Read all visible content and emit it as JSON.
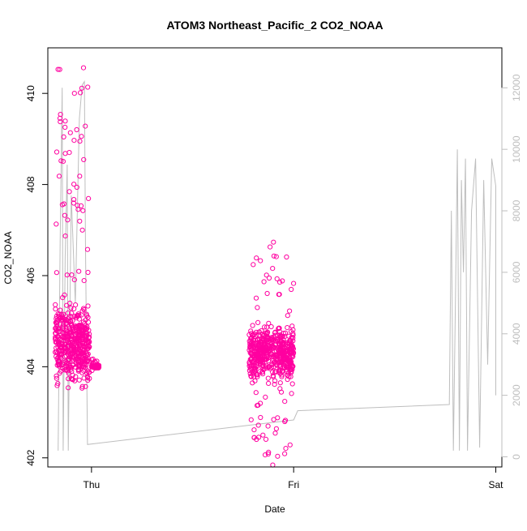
{
  "chart_data": {
    "type": "scatter",
    "title": "ATOM3 Northeast_Pacific_2 CO2_NOAA",
    "xlabel": "Date",
    "ylabel": "CO2_NOAA",
    "x_ticks": [
      {
        "label": "Thu",
        "day": 0.0
      },
      {
        "label": "Fri",
        "day": 1.0
      },
      {
        "label": "Sat",
        "day": 2.0
      }
    ],
    "x_range_days": [
      -0.216,
      2.03
    ],
    "y_left": {
      "ticks": [
        402,
        404,
        406,
        408,
        410
      ],
      "range": [
        401.8,
        411.0
      ]
    },
    "y_right": {
      "ticks": [
        0,
        2000,
        4000,
        6000,
        8000,
        10000,
        12000
      ],
      "range": [
        -330,
        13300
      ],
      "color": "#bebebe"
    },
    "marker_color": "#ff00a0",
    "line_color": "#bebebe",
    "grid": false,
    "series": [
      {
        "kind": "scatter_clusters",
        "axis": "left",
        "clusters": [
          {
            "x_start": -0.18,
            "x_end": -0.01,
            "y_min": 403.5,
            "y_max": 410.6,
            "y_center": 404.5,
            "n": 520
          },
          {
            "x_start": 0.0,
            "x_end": 0.04,
            "y_min": 403.9,
            "y_max": 404.2,
            "y_center": 404.0,
            "n": 80
          },
          {
            "x_start": 0.78,
            "x_end": 1.0,
            "y_min": 401.8,
            "y_max": 406.8,
            "y_center": 404.3,
            "n": 560
          }
        ]
      },
      {
        "kind": "line",
        "axis": "right",
        "points": [
          [
            -0.165,
            200
          ],
          [
            -0.155,
            7000
          ],
          [
            -0.145,
            12000
          ],
          [
            -0.14,
            200
          ],
          [
            -0.13,
            6500
          ],
          [
            -0.12,
            9500
          ],
          [
            -0.115,
            200
          ],
          [
            -0.1,
            8500
          ],
          [
            -0.08,
            5000
          ],
          [
            -0.06,
            11000
          ],
          [
            -0.05,
            11800
          ],
          [
            -0.045,
            12100
          ],
          [
            -0.035,
            12200
          ],
          [
            -0.03,
            7000
          ],
          [
            -0.02,
            400
          ],
          [
            1.0,
            1200
          ],
          [
            1.02,
            1500
          ],
          [
            1.77,
            1700
          ],
          [
            1.78,
            8000
          ],
          [
            1.79,
            200
          ],
          [
            1.8,
            5000
          ],
          [
            1.81,
            10000
          ],
          [
            1.82,
            200
          ],
          [
            1.83,
            9000
          ],
          [
            1.84,
            6000
          ],
          [
            1.85,
            9700
          ],
          [
            1.86,
            200
          ],
          [
            1.88,
            8000
          ],
          [
            1.9,
            9700
          ],
          [
            1.92,
            300
          ],
          [
            1.94,
            9000
          ],
          [
            1.96,
            3000
          ],
          [
            1.98,
            9700
          ],
          [
            2.0,
            8800
          ],
          [
            2.0,
            2000
          ]
        ]
      }
    ]
  }
}
